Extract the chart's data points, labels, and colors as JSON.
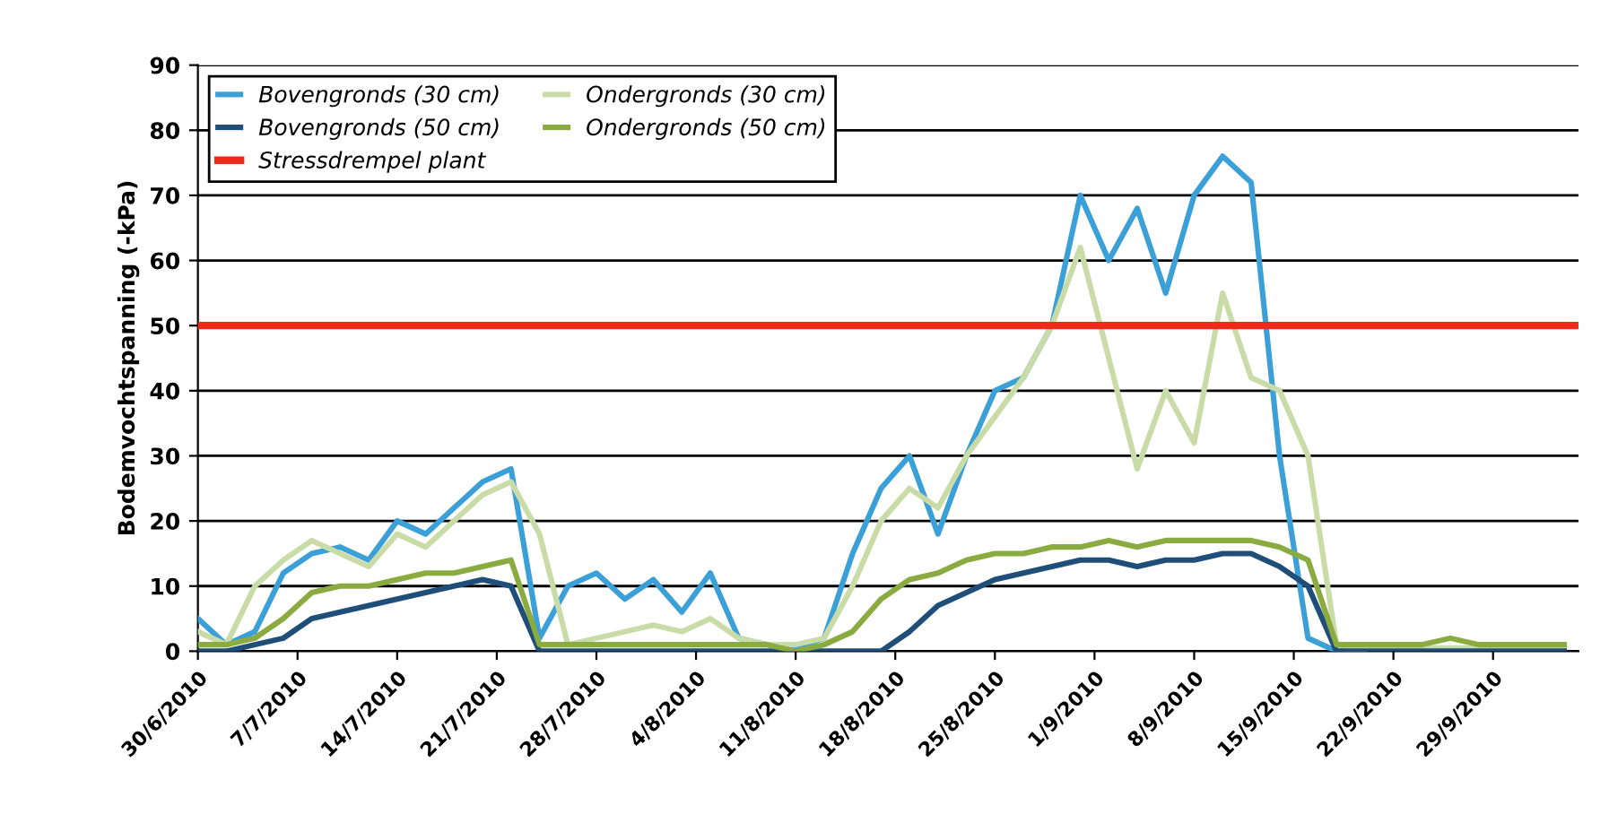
{
  "chart_data": {
    "type": "line",
    "ylabel": "Bodemvochtspanning (-kPa)",
    "x": [
      "2010-06-30",
      "2010-07-02",
      "2010-07-04",
      "2010-07-06",
      "2010-07-08",
      "2010-07-10",
      "2010-07-12",
      "2010-07-14",
      "2010-07-16",
      "2010-07-18",
      "2010-07-20",
      "2010-07-22",
      "2010-07-24",
      "2010-07-26",
      "2010-07-28",
      "2010-07-30",
      "2010-08-01",
      "2010-08-03",
      "2010-08-05",
      "2010-08-07",
      "2010-08-09",
      "2010-08-11",
      "2010-08-13",
      "2010-08-15",
      "2010-08-17",
      "2010-08-19",
      "2010-08-21",
      "2010-08-23",
      "2010-08-25",
      "2010-08-27",
      "2010-08-29",
      "2010-08-31",
      "2010-09-02",
      "2010-09-04",
      "2010-09-06",
      "2010-09-08",
      "2010-09-10",
      "2010-09-12",
      "2010-09-14",
      "2010-09-16",
      "2010-09-18",
      "2010-09-20",
      "2010-09-22",
      "2010-09-24",
      "2010-09-26",
      "2010-09-28",
      "2010-09-30",
      "2010-10-02",
      "2010-10-04"
    ],
    "series": [
      {
        "name": "Bovengronds (30 cm)",
        "color": "#3b9fd8",
        "values": [
          5,
          1,
          3,
          12,
          15,
          16,
          14,
          20,
          18,
          22,
          26,
          28,
          2,
          10,
          12,
          8,
          11,
          6,
          12,
          2,
          1,
          0.5,
          2,
          15,
          25,
          30,
          18,
          30,
          40,
          42,
          50,
          70,
          60,
          68,
          55,
          70,
          76,
          72,
          30,
          2,
          0,
          0,
          null,
          null,
          null,
          null,
          null,
          null,
          null
        ]
      },
      {
        "name": "Ondergronds (30 cm)",
        "color": "#c9dca8",
        "values": [
          3,
          1,
          10,
          14,
          17,
          15,
          13,
          18,
          16,
          20,
          24,
          26,
          18,
          1,
          2,
          3,
          4,
          3,
          5,
          2,
          1,
          1,
          2,
          10,
          20,
          25,
          22,
          30,
          36,
          42,
          50,
          62,
          45,
          28,
          40,
          32,
          55,
          42,
          40,
          30,
          1,
          0.5,
          0.5,
          0.5,
          0.5,
          0.5,
          0.5,
          0.5,
          0.5
        ]
      },
      {
        "name": "Bovengronds (50 cm)",
        "color": "#1f4e79",
        "values": [
          0,
          0,
          1,
          2,
          5,
          6,
          7,
          8,
          9,
          10,
          11,
          10,
          0,
          0,
          0,
          0,
          0,
          0,
          0,
          0,
          0,
          0,
          0,
          0,
          0,
          3,
          7,
          9,
          11,
          12,
          13,
          14,
          14,
          13,
          14,
          14,
          15,
          15,
          13,
          10,
          0,
          0,
          0,
          0,
          0,
          0,
          0,
          0,
          0
        ]
      },
      {
        "name": "Ondergronds (50 cm)",
        "color": "#8aab3f",
        "values": [
          1,
          1,
          2,
          5,
          9,
          10,
          10,
          11,
          12,
          12,
          13,
          14,
          1,
          1,
          1,
          1,
          1,
          1,
          1,
          1,
          1,
          0,
          1,
          3,
          8,
          11,
          12,
          14,
          15,
          15,
          16,
          16,
          17,
          16,
          17,
          17,
          17,
          17,
          16,
          14,
          1,
          1,
          1,
          1,
          2,
          1,
          1,
          1,
          1
        ]
      }
    ],
    "ref_lines": [
      {
        "axis": "y",
        "value": 50,
        "label": "Stressdrempel plant",
        "color": "#ee2a1b"
      }
    ],
    "ylim": [
      0,
      90
    ],
    "yticks": [
      0,
      10,
      20,
      30,
      40,
      50,
      60,
      70,
      80,
      90
    ],
    "xlim": [
      "2010-06-30",
      "2010-10-05"
    ],
    "xticks": [
      {
        "value": "2010-06-30",
        "label": "30/6/2010"
      },
      {
        "value": "2010-07-07",
        "label": "7/7/2010"
      },
      {
        "value": "2010-07-14",
        "label": "14/7/2010"
      },
      {
        "value": "2010-07-21",
        "label": "21/7/2010"
      },
      {
        "value": "2010-07-28",
        "label": "28/7/2010"
      },
      {
        "value": "2010-08-04",
        "label": "4/8/2010"
      },
      {
        "value": "2010-08-11",
        "label": "11/8/2010"
      },
      {
        "value": "2010-08-18",
        "label": "18/8/2010"
      },
      {
        "value": "2010-08-25",
        "label": "25/8/2010"
      },
      {
        "value": "2010-09-01",
        "label": "1/9/2010"
      },
      {
        "value": "2010-09-08",
        "label": "8/9/2010"
      },
      {
        "value": "2010-09-15",
        "label": "15/9/2010"
      },
      {
        "value": "2010-09-22",
        "label": "22/9/2010"
      },
      {
        "value": "2010-09-29",
        "label": "29/9/2010"
      }
    ],
    "grid": "y",
    "legend": "top left"
  }
}
